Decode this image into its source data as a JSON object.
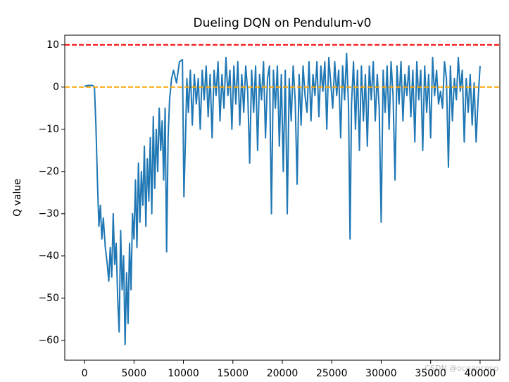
{
  "chart_data": {
    "type": "line",
    "title": "Dueling DQN on Pendulum-v0",
    "y_label": "Q value",
    "watermark": "CSDN @oceancoco",
    "x": [
      0,
      400,
      800,
      1000,
      1150,
      1300,
      1450,
      1600,
      1750,
      1900,
      2100,
      2300,
      2450,
      2600,
      2750,
      2900,
      3050,
      3200,
      3350,
      3500,
      3650,
      3800,
      3950,
      4100,
      4250,
      4400,
      4550,
      4700,
      4850,
      5000,
      5150,
      5300,
      5450,
      5600,
      5750,
      5900,
      6050,
      6200,
      6350,
      6500,
      6650,
      6800,
      6950,
      7100,
      7250,
      7400,
      7550,
      7700,
      7850,
      8000,
      8150,
      8300,
      8450,
      8600,
      8800,
      9000,
      9300,
      9600,
      9900,
      10050,
      10200,
      10350,
      10500,
      10700,
      10900,
      11100,
      11300,
      11500,
      11700,
      11900,
      12100,
      12300,
      12500,
      12700,
      12900,
      13100,
      13300,
      13500,
      13700,
      13900,
      14100,
      14300,
      14500,
      14700,
      14900,
      15100,
      15300,
      15500,
      15700,
      15900,
      16100,
      16300,
      16500,
      16700,
      16900,
      17100,
      17300,
      17500,
      17700,
      17900,
      18100,
      18300,
      18500,
      18700,
      18900,
      19100,
      19300,
      19500,
      19700,
      19900,
      20100,
      20300,
      20500,
      20700,
      20900,
      21100,
      21300,
      21500,
      21700,
      21900,
      22100,
      22300,
      22500,
      22700,
      22900,
      23100,
      23300,
      23500,
      23700,
      23900,
      24100,
      24300,
      24500,
      24700,
      24900,
      25100,
      25300,
      25500,
      25700,
      25900,
      26100,
      26300,
      26500,
      26700,
      26850,
      27000,
      27200,
      27400,
      27600,
      27800,
      28000,
      28200,
      28400,
      28600,
      28800,
      29000,
      29200,
      29400,
      29600,
      29800,
      30000,
      30200,
      30400,
      30600,
      30800,
      31000,
      31200,
      31400,
      31600,
      31800,
      32000,
      32200,
      32400,
      32600,
      32800,
      33000,
      33200,
      33400,
      33600,
      33800,
      34000,
      34200,
      34400,
      34600,
      34800,
      35000,
      35200,
      35400,
      35600,
      35800,
      36000,
      36200,
      36400,
      36600,
      36800,
      37000,
      37200,
      37400,
      37600,
      37800,
      38000,
      38200,
      38400,
      38600,
      38800,
      39000,
      39200,
      39400,
      39600,
      39800,
      40000
    ],
    "series": [
      {
        "color": "#1f77b4",
        "values": [
          0.2,
          0.4,
          0.4,
          0,
          -9,
          -22,
          -33,
          -28,
          -36,
          -31,
          -38,
          -42,
          -46,
          -38,
          -45,
          -30,
          -42,
          -37,
          -50,
          -58,
          -34,
          -48,
          -40,
          -61,
          -44,
          -56,
          -37,
          -48,
          -30,
          -36,
          -22,
          -38,
          -18,
          -32,
          -20,
          -28,
          -14,
          -33,
          -17,
          -27,
          -12,
          -30,
          -7,
          -24,
          -10,
          -20,
          -5,
          -15,
          -8,
          -22,
          -5,
          -39,
          -12,
          -3,
          2,
          4,
          1,
          6,
          6.5,
          -26,
          -13,
          2,
          -6,
          4,
          -9,
          3,
          -4,
          2,
          -10,
          4,
          -3,
          5,
          -7,
          3,
          -12,
          4,
          -2,
          6,
          -8,
          3,
          -5,
          7,
          -2,
          4,
          -10,
          5,
          -4,
          6,
          -9,
          3,
          -6,
          5,
          -1,
          -18,
          4,
          -6,
          5,
          -15,
          3,
          -3,
          6,
          -12,
          2,
          5,
          -30,
          4,
          -5,
          5,
          -14,
          3,
          -20,
          4,
          -30,
          2,
          -8,
          5,
          -3,
          -23,
          3,
          -9,
          5,
          -2,
          -6,
          6,
          -8,
          3,
          -2,
          6,
          -7,
          5,
          -1,
          6,
          -10,
          7,
          1,
          -5,
          6,
          -2,
          4,
          -12,
          5,
          -3,
          8,
          -5,
          -36,
          -4,
          6,
          -10,
          4,
          -15,
          5,
          -8,
          3,
          -14,
          5,
          -3,
          6,
          -8,
          3,
          -5,
          -32,
          4,
          -6,
          5,
          -10,
          6,
          -2,
          -22,
          5,
          -4,
          6,
          -8,
          3,
          -2,
          5,
          -7,
          4,
          -13,
          6,
          -3,
          4,
          -15,
          5,
          -6,
          3,
          -12,
          7,
          -2,
          4,
          -4,
          -1,
          -5,
          6,
          2,
          -19,
          5,
          -8,
          2,
          -3,
          7,
          -1,
          4,
          -13,
          2,
          -6,
          3,
          -9,
          1,
          -13,
          -3,
          5
        ]
      }
    ],
    "hlines": [
      {
        "value": 10,
        "color": "red"
      },
      {
        "value": 0,
        "color": "orange"
      }
    ],
    "xlim": [
      -2000,
      42000
    ],
    "ylim": [
      -64.7,
      12.3
    ],
    "xticks": [
      0,
      5000,
      10000,
      15000,
      20000,
      25000,
      30000,
      35000,
      40000
    ],
    "yticks": [
      {
        "value": -60,
        "label": "−60"
      },
      {
        "value": -50,
        "label": "−50"
      },
      {
        "value": -40,
        "label": "−40"
      },
      {
        "value": -30,
        "label": "−30"
      },
      {
        "value": -20,
        "label": "−20"
      },
      {
        "value": -10,
        "label": "−10"
      },
      0,
      10
    ]
  }
}
